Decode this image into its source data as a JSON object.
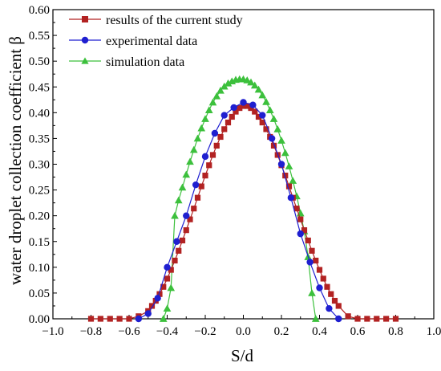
{
  "chart_data": {
    "type": "line",
    "title": "",
    "xlabel": "S/d",
    "ylabel": "water droplet collection coefficient β",
    "xlim": [
      -1.0,
      1.0
    ],
    "ylim": [
      0.0,
      0.6
    ],
    "x_ticks": [
      "−1.0",
      "−0.8",
      "−0.6",
      "−0.4",
      "−0.2",
      "0.0",
      "0.2",
      "0.4",
      "0.6",
      "0.8",
      "1.0"
    ],
    "y_ticks": [
      "0.00",
      "0.05",
      "0.10",
      "0.15",
      "0.20",
      "0.25",
      "0.30",
      "0.35",
      "0.40",
      "0.45",
      "0.50",
      "0.55",
      "0.60"
    ],
    "grid": false,
    "legend_position": "top-left",
    "series": [
      {
        "name": "results of the current study",
        "color": "#b22222",
        "marker": "square",
        "x": [
          -0.8,
          -0.75,
          -0.7,
          -0.65,
          -0.6,
          -0.55,
          -0.5,
          -0.48,
          -0.46,
          -0.44,
          -0.42,
          -0.4,
          -0.38,
          -0.36,
          -0.34,
          -0.32,
          -0.3,
          -0.28,
          -0.26,
          -0.24,
          -0.22,
          -0.2,
          -0.18,
          -0.16,
          -0.14,
          -0.12,
          -0.1,
          -0.08,
          -0.06,
          -0.04,
          -0.02,
          0.0,
          0.02,
          0.04,
          0.06,
          0.08,
          0.1,
          0.12,
          0.14,
          0.16,
          0.18,
          0.2,
          0.22,
          0.24,
          0.26,
          0.28,
          0.3,
          0.32,
          0.34,
          0.36,
          0.38,
          0.4,
          0.42,
          0.44,
          0.46,
          0.48,
          0.5,
          0.55,
          0.6,
          0.65,
          0.7,
          0.75,
          0.8
        ],
        "y": [
          0.0,
          0.0,
          0.0,
          0.0,
          0.0,
          0.005,
          0.015,
          0.025,
          0.035,
          0.048,
          0.062,
          0.078,
          0.095,
          0.113,
          0.132,
          0.152,
          0.172,
          0.193,
          0.214,
          0.235,
          0.257,
          0.278,
          0.298,
          0.318,
          0.336,
          0.353,
          0.368,
          0.381,
          0.392,
          0.402,
          0.409,
          0.413,
          0.413,
          0.409,
          0.402,
          0.392,
          0.381,
          0.368,
          0.353,
          0.336,
          0.318,
          0.298,
          0.278,
          0.257,
          0.235,
          0.214,
          0.193,
          0.172,
          0.152,
          0.132,
          0.113,
          0.095,
          0.078,
          0.062,
          0.048,
          0.035,
          0.025,
          0.005,
          0.0,
          0.0,
          0.0,
          0.0,
          0.0
        ]
      },
      {
        "name": "experimental data",
        "color": "#1f1fd0",
        "marker": "circle",
        "x": [
          -0.55,
          -0.5,
          -0.45,
          -0.4,
          -0.35,
          -0.3,
          -0.25,
          -0.2,
          -0.15,
          -0.1,
          -0.05,
          0.0,
          0.05,
          0.1,
          0.15,
          0.2,
          0.25,
          0.3,
          0.35,
          0.4,
          0.45,
          0.5
        ],
        "y": [
          0.0,
          0.01,
          0.04,
          0.1,
          0.15,
          0.2,
          0.26,
          0.315,
          0.36,
          0.395,
          0.41,
          0.42,
          0.415,
          0.395,
          0.35,
          0.3,
          0.235,
          0.165,
          0.11,
          0.06,
          0.02,
          0.0
        ]
      },
      {
        "name": "simulation data",
        "color": "#3cc03c",
        "marker": "triangle",
        "x": [
          -0.42,
          -0.4,
          -0.38,
          -0.36,
          -0.34,
          -0.32,
          -0.3,
          -0.28,
          -0.26,
          -0.24,
          -0.22,
          -0.2,
          -0.18,
          -0.16,
          -0.14,
          -0.12,
          -0.1,
          -0.08,
          -0.06,
          -0.04,
          -0.02,
          0.0,
          0.02,
          0.04,
          0.06,
          0.08,
          0.1,
          0.12,
          0.14,
          0.16,
          0.18,
          0.2,
          0.22,
          0.24,
          0.26,
          0.28,
          0.3,
          0.32,
          0.34,
          0.36,
          0.38
        ],
        "y": [
          0.0,
          0.02,
          0.06,
          0.2,
          0.23,
          0.255,
          0.28,
          0.305,
          0.328,
          0.35,
          0.37,
          0.388,
          0.405,
          0.42,
          0.432,
          0.443,
          0.451,
          0.457,
          0.461,
          0.464,
          0.465,
          0.465,
          0.463,
          0.459,
          0.453,
          0.445,
          0.434,
          0.421,
          0.405,
          0.388,
          0.368,
          0.346,
          0.322,
          0.296,
          0.268,
          0.238,
          0.205,
          0.17,
          0.12,
          0.05,
          0.0
        ]
      }
    ]
  }
}
